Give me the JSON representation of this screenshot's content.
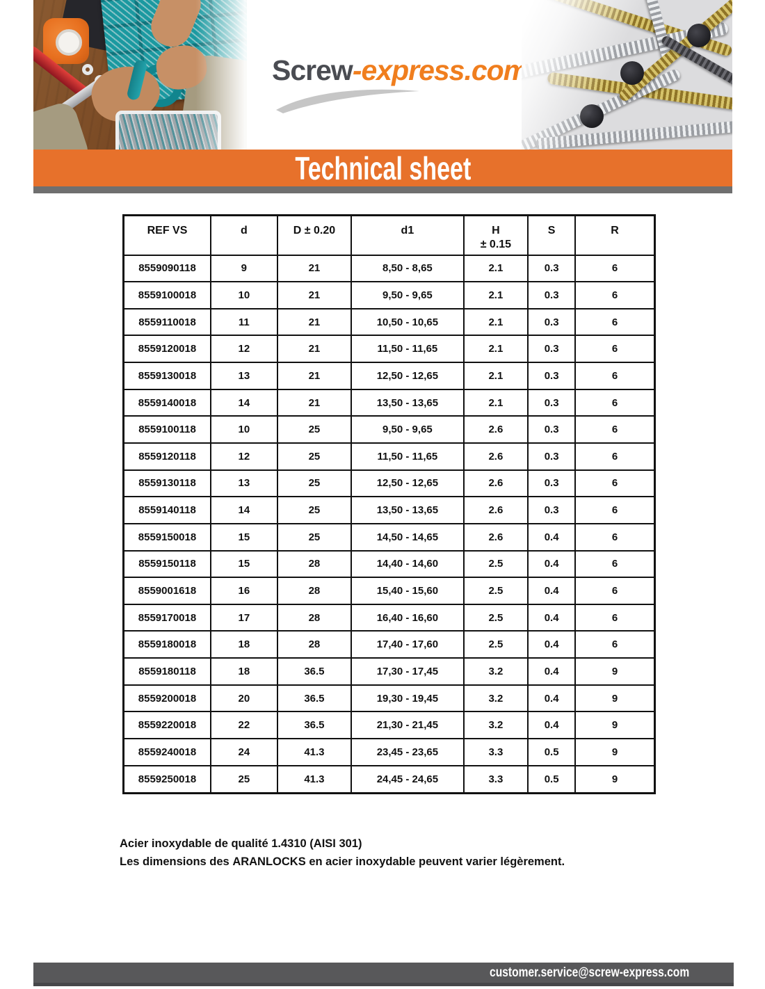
{
  "colors": {
    "accent_orange": "#E7712B",
    "divider_gray": "#6F6F6F",
    "footer_bar_gray": "#58585A",
    "logo_text_gray": "#4A4C52",
    "logo_orange": "#F07E1E"
  },
  "header": {
    "logo_gray": "Screw",
    "logo_orange": "-express.com"
  },
  "banner": {
    "title": "Technical sheet"
  },
  "table": {
    "columns": [
      {
        "label": "REF VS"
      },
      {
        "label": "d"
      },
      {
        "label": "D ± 0.20"
      },
      {
        "label": "d1"
      },
      {
        "label": "H",
        "sub": "± 0.15"
      },
      {
        "label": "S"
      },
      {
        "label": "R"
      }
    ],
    "rows": [
      [
        "8559090118",
        "9",
        "21",
        "8,50 - 8,65",
        "2.1",
        "0.3",
        "6"
      ],
      [
        "8559100018",
        "10",
        "21",
        "9,50 - 9,65",
        "2.1",
        "0.3",
        "6"
      ],
      [
        "8559110018",
        "11",
        "21",
        "10,50 - 10,65",
        "2.1",
        "0.3",
        "6"
      ],
      [
        "8559120018",
        "12",
        "21",
        "11,50 - 11,65",
        "2.1",
        "0.3",
        "6"
      ],
      [
        "8559130018",
        "13",
        "21",
        "12,50 - 12,65",
        "2.1",
        "0.3",
        "6"
      ],
      [
        "8559140018",
        "14",
        "21",
        "13,50 - 13,65",
        "2.1",
        "0.3",
        "6"
      ],
      [
        "8559100118",
        "10",
        "25",
        "9,50 - 9,65",
        "2.6",
        "0.3",
        "6"
      ],
      [
        "8559120118",
        "12",
        "25",
        "11,50 - 11,65",
        "2.6",
        "0.3",
        "6"
      ],
      [
        "8559130118",
        "13",
        "25",
        "12,50 - 12,65",
        "2.6",
        "0.3",
        "6"
      ],
      [
        "8559140118",
        "14",
        "25",
        "13,50 - 13,65",
        "2.6",
        "0.3",
        "6"
      ],
      [
        "8559150018",
        "15",
        "25",
        "14,50 - 14,65",
        "2.6",
        "0.4",
        "6"
      ],
      [
        "8559150118",
        "15",
        "28",
        "14,40 - 14,60",
        "2.5",
        "0.4",
        "6"
      ],
      [
        "8559001618",
        "16",
        "28",
        "15,40 - 15,60",
        "2.5",
        "0.4",
        "6"
      ],
      [
        "8559170018",
        "17",
        "28",
        "16,40 - 16,60",
        "2.5",
        "0.4",
        "6"
      ],
      [
        "8559180018",
        "18",
        "28",
        "17,40 - 17,60",
        "2.5",
        "0.4",
        "6"
      ],
      [
        "8559180118",
        "18",
        "36.5",
        "17,30 - 17,45",
        "3.2",
        "0.4",
        "9"
      ],
      [
        "8559200018",
        "20",
        "36.5",
        "19,30 - 19,45",
        "3.2",
        "0.4",
        "9"
      ],
      [
        "8559220018",
        "22",
        "36.5",
        "21,30 - 21,45",
        "3.2",
        "0.4",
        "9"
      ],
      [
        "8559240018",
        "24",
        "41.3",
        "23,45 - 23,65",
        "3.3",
        "0.5",
        "9"
      ],
      [
        "8559250018",
        "25",
        "41.3",
        "24,45 - 24,65",
        "3.3",
        "0.5",
        "9"
      ]
    ]
  },
  "notes": {
    "line1": "Acier inoxydable de qualité 1.4310 (AISI 301)",
    "line2_prefix": "Les dimensions des ",
    "line2_bold": "ARANLOCKS",
    "line2_suffix": " en acier inoxydable peuvent varier légèrement."
  },
  "footer": {
    "email": "customer.service@screw-express.com"
  }
}
